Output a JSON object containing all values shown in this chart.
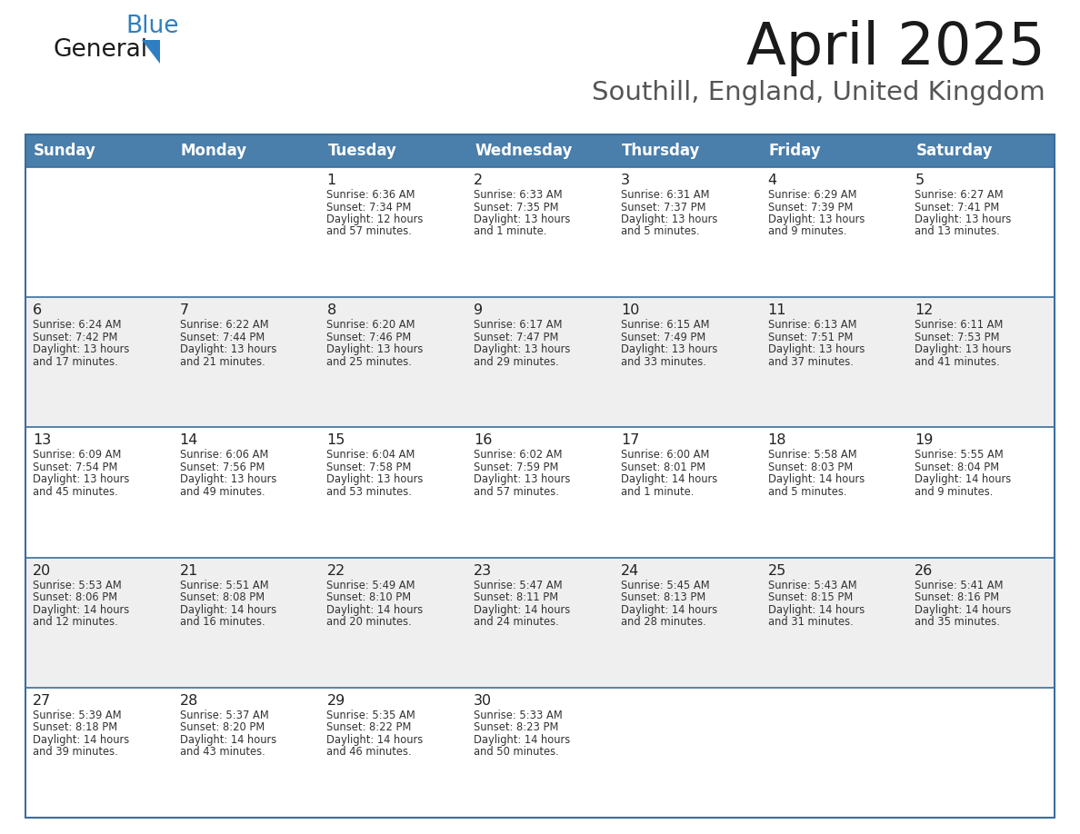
{
  "title": "April 2025",
  "subtitle": "Southill, England, United Kingdom",
  "header_bg": "#4a7eab",
  "header_text": "#ffffff",
  "row_bg_white": "#ffffff",
  "row_bg_gray": "#efefef",
  "separator_color": "#3a6e9e",
  "text_color": "#333333",
  "day_num_color": "#222222",
  "day_headers": [
    "Sunday",
    "Monday",
    "Tuesday",
    "Wednesday",
    "Thursday",
    "Friday",
    "Saturday"
  ],
  "weeks": [
    [
      {
        "day": "",
        "info": ""
      },
      {
        "day": "",
        "info": ""
      },
      {
        "day": "1",
        "info": "Sunrise: 6:36 AM\nSunset: 7:34 PM\nDaylight: 12 hours\nand 57 minutes."
      },
      {
        "day": "2",
        "info": "Sunrise: 6:33 AM\nSunset: 7:35 PM\nDaylight: 13 hours\nand 1 minute."
      },
      {
        "day": "3",
        "info": "Sunrise: 6:31 AM\nSunset: 7:37 PM\nDaylight: 13 hours\nand 5 minutes."
      },
      {
        "day": "4",
        "info": "Sunrise: 6:29 AM\nSunset: 7:39 PM\nDaylight: 13 hours\nand 9 minutes."
      },
      {
        "day": "5",
        "info": "Sunrise: 6:27 AM\nSunset: 7:41 PM\nDaylight: 13 hours\nand 13 minutes."
      }
    ],
    [
      {
        "day": "6",
        "info": "Sunrise: 6:24 AM\nSunset: 7:42 PM\nDaylight: 13 hours\nand 17 minutes."
      },
      {
        "day": "7",
        "info": "Sunrise: 6:22 AM\nSunset: 7:44 PM\nDaylight: 13 hours\nand 21 minutes."
      },
      {
        "day": "8",
        "info": "Sunrise: 6:20 AM\nSunset: 7:46 PM\nDaylight: 13 hours\nand 25 minutes."
      },
      {
        "day": "9",
        "info": "Sunrise: 6:17 AM\nSunset: 7:47 PM\nDaylight: 13 hours\nand 29 minutes."
      },
      {
        "day": "10",
        "info": "Sunrise: 6:15 AM\nSunset: 7:49 PM\nDaylight: 13 hours\nand 33 minutes."
      },
      {
        "day": "11",
        "info": "Sunrise: 6:13 AM\nSunset: 7:51 PM\nDaylight: 13 hours\nand 37 minutes."
      },
      {
        "day": "12",
        "info": "Sunrise: 6:11 AM\nSunset: 7:53 PM\nDaylight: 13 hours\nand 41 minutes."
      }
    ],
    [
      {
        "day": "13",
        "info": "Sunrise: 6:09 AM\nSunset: 7:54 PM\nDaylight: 13 hours\nand 45 minutes."
      },
      {
        "day": "14",
        "info": "Sunrise: 6:06 AM\nSunset: 7:56 PM\nDaylight: 13 hours\nand 49 minutes."
      },
      {
        "day": "15",
        "info": "Sunrise: 6:04 AM\nSunset: 7:58 PM\nDaylight: 13 hours\nand 53 minutes."
      },
      {
        "day": "16",
        "info": "Sunrise: 6:02 AM\nSunset: 7:59 PM\nDaylight: 13 hours\nand 57 minutes."
      },
      {
        "day": "17",
        "info": "Sunrise: 6:00 AM\nSunset: 8:01 PM\nDaylight: 14 hours\nand 1 minute."
      },
      {
        "day": "18",
        "info": "Sunrise: 5:58 AM\nSunset: 8:03 PM\nDaylight: 14 hours\nand 5 minutes."
      },
      {
        "day": "19",
        "info": "Sunrise: 5:55 AM\nSunset: 8:04 PM\nDaylight: 14 hours\nand 9 minutes."
      }
    ],
    [
      {
        "day": "20",
        "info": "Sunrise: 5:53 AM\nSunset: 8:06 PM\nDaylight: 14 hours\nand 12 minutes."
      },
      {
        "day": "21",
        "info": "Sunrise: 5:51 AM\nSunset: 8:08 PM\nDaylight: 14 hours\nand 16 minutes."
      },
      {
        "day": "22",
        "info": "Sunrise: 5:49 AM\nSunset: 8:10 PM\nDaylight: 14 hours\nand 20 minutes."
      },
      {
        "day": "23",
        "info": "Sunrise: 5:47 AM\nSunset: 8:11 PM\nDaylight: 14 hours\nand 24 minutes."
      },
      {
        "day": "24",
        "info": "Sunrise: 5:45 AM\nSunset: 8:13 PM\nDaylight: 14 hours\nand 28 minutes."
      },
      {
        "day": "25",
        "info": "Sunrise: 5:43 AM\nSunset: 8:15 PM\nDaylight: 14 hours\nand 31 minutes."
      },
      {
        "day": "26",
        "info": "Sunrise: 5:41 AM\nSunset: 8:16 PM\nDaylight: 14 hours\nand 35 minutes."
      }
    ],
    [
      {
        "day": "27",
        "info": "Sunrise: 5:39 AM\nSunset: 8:18 PM\nDaylight: 14 hours\nand 39 minutes."
      },
      {
        "day": "28",
        "info": "Sunrise: 5:37 AM\nSunset: 8:20 PM\nDaylight: 14 hours\nand 43 minutes."
      },
      {
        "day": "29",
        "info": "Sunrise: 5:35 AM\nSunset: 8:22 PM\nDaylight: 14 hours\nand 46 minutes."
      },
      {
        "day": "30",
        "info": "Sunrise: 5:33 AM\nSunset: 8:23 PM\nDaylight: 14 hours\nand 50 minutes."
      },
      {
        "day": "",
        "info": ""
      },
      {
        "day": "",
        "info": ""
      },
      {
        "day": "",
        "info": ""
      }
    ]
  ],
  "logo_general_color": "#1a1a1a",
  "logo_blue_color": "#2e7fc1",
  "logo_triangle_color": "#2e7fc1",
  "fig_width": 11.88,
  "fig_height": 9.18,
  "dpi": 100
}
